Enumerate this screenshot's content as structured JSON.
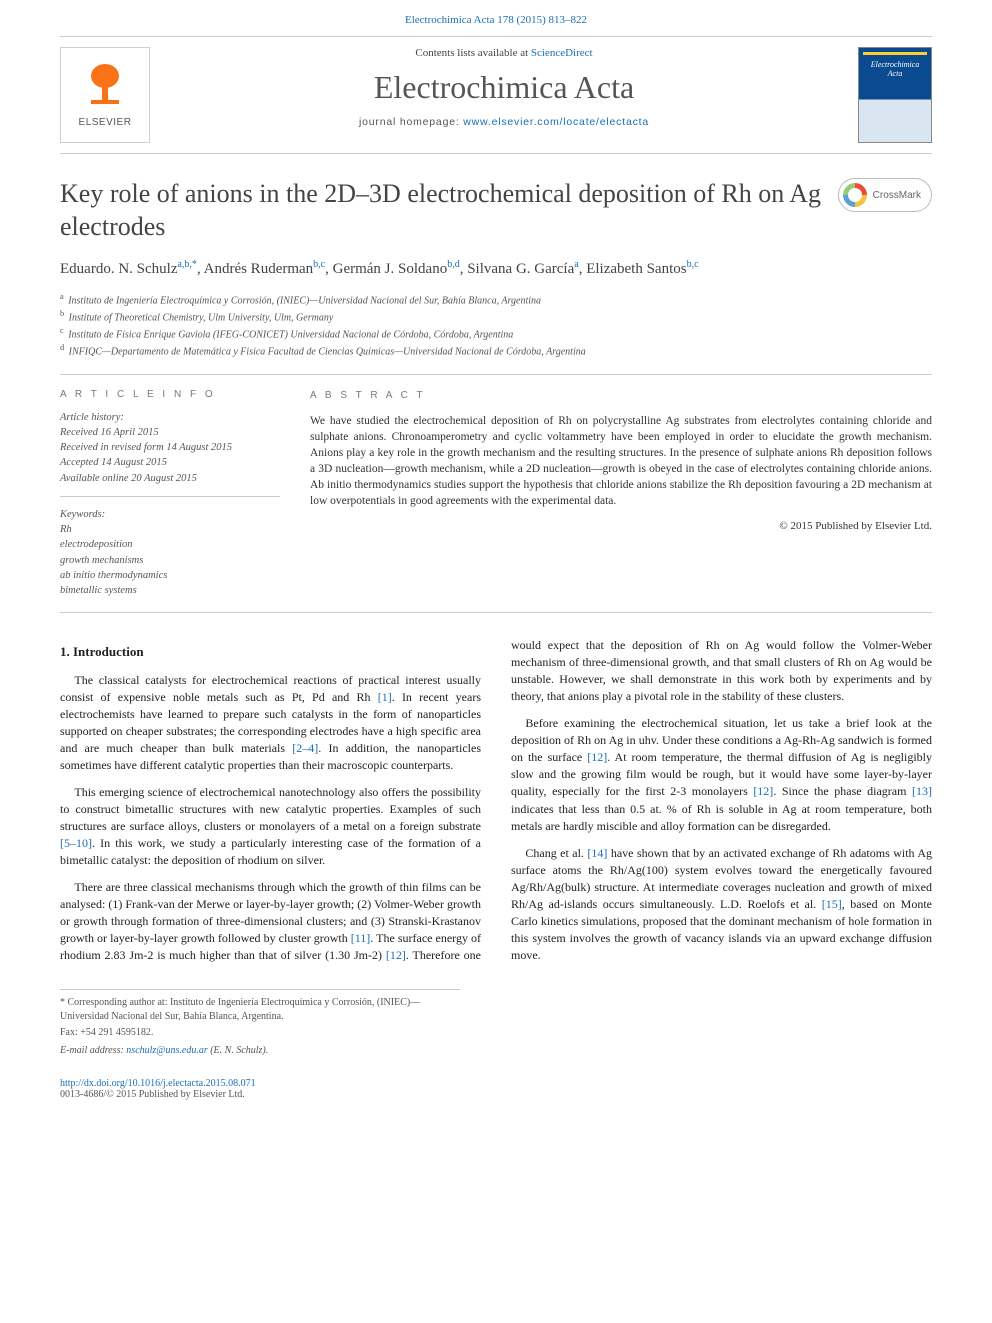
{
  "top_link": {
    "journal": "Electrochimica Acta",
    "cite": "178 (2015) 813–822"
  },
  "header": {
    "contents_prefix": "Contents lists available at ",
    "contents_link": "ScienceDirect",
    "journal_name": "Electrochimica Acta",
    "homepage_prefix": "journal homepage: ",
    "homepage_url": "www.elsevier.com/locate/electacta",
    "elsevier_brand": "ELSEVIER",
    "cover_title": "Electrochimica Acta"
  },
  "article": {
    "title": "Key role of anions in the 2D–3D electrochemical deposition of Rh on Ag electrodes",
    "crossmark_label": "CrossMark",
    "authors_html": "Eduardo. N. Schulz<sup>a,b,*</sup>, Andrés Ruderman<sup>b,c</sup>, Germán J. Soldano<sup>b,d</sup>, Silvana G. García<sup>a</sup>, Elizabeth Santos<sup>b,c</sup>",
    "affiliations": [
      {
        "key": "a",
        "text": "Instituto de Ingeniería Electroquímica y Corrosión, (INIEC)—Universidad Nacional del Sur, Bahía Blanca, Argentina"
      },
      {
        "key": "b",
        "text": "Institute of Theoretical Chemistry, Ulm University, Ulm, Germany"
      },
      {
        "key": "c",
        "text": "Instituto de Física Enrique Gaviola (IFEG-CONICET) Universidad Nacional de Córdoba, Córdoba, Argentina"
      },
      {
        "key": "d",
        "text": "INFIQC—Departamento de Matemática y Física Facultad de Ciencias Químicas—Universidad Nacional de Córdoba, Argentina"
      }
    ]
  },
  "info": {
    "heading": "A R T I C L E   I N F O",
    "history_label": "Article history:",
    "history": [
      "Received 16 April 2015",
      "Received in revised form 14 August 2015",
      "Accepted 14 August 2015",
      "Available online 20 August 2015"
    ],
    "keywords_label": "Keywords:",
    "keywords": [
      "Rh",
      "electrodeposition",
      "growth mechanisms",
      "ab initio thermodynamics",
      "bimetallic systems"
    ]
  },
  "abstract": {
    "heading": "A B S T R A C T",
    "text": "We have studied the electrochemical deposition of Rh on polycrystalline Ag substrates from electrolytes containing chloride and sulphate anions. Chronoamperometry and cyclic voltammetry have been employed in order to elucidate the growth mechanism. Anions play a key role in the growth mechanism and the resulting structures. In the presence of sulphate anions Rh deposition follows a 3D nucleation—growth mechanism, while a 2D nucleation—growth is obeyed in the case of electrolytes containing chloride anions. Ab initio thermodynamics studies support the hypothesis that chloride anions stabilize the Rh deposition favouring a 2D mechanism at low overpotentials in good agreements with the experimental data.",
    "copyright": "© 2015 Published by Elsevier Ltd."
  },
  "body": {
    "section_heading": "1. Introduction",
    "paragraphs": [
      "The classical catalysts for electrochemical reactions of practical interest usually consist of expensive noble metals such as Pt, Pd and Rh [1]. In recent years electrochemists have learned to prepare such catalysts in the form of nanoparticles supported on cheaper substrates; the corresponding electrodes have a high specific area and are much cheaper than bulk materials [2–4]. In addition, the nanoparticles sometimes have different catalytic properties than their macroscopic counterparts.",
      "This emerging science of electrochemical nanotechnology also offers the possibility to construct bimetallic structures with new catalytic properties. Examples of such structures are surface alloys, clusters or monolayers of a metal on a foreign substrate [5–10]. In this work, we study a particularly interesting case of the formation of a bimetallic catalyst: the deposition of rhodium on silver.",
      "There are three classical mechanisms through which the growth of thin films can be analysed: (1) Frank-van der Merwe or layer-by-layer growth; (2) Volmer-Weber growth or growth through formation of three-dimensional clusters; and (3) Stranski-Krastanov growth or layer-by-layer growth followed by cluster growth [11]. The surface energy of rhodium 2.83 Jm-2 is much higher than that of silver (1.30 Jm-2) [12]. Therefore one would expect that the deposition of Rh on Ag would follow the Volmer-Weber mechanism of three-dimensional growth, and that small clusters of Rh on Ag would be unstable. However, we shall demonstrate in this work both by experiments and by theory, that anions play a pivotal role in the stability of these clusters.",
      "Before examining the electrochemical situation, let us take a brief look at the deposition of Rh on Ag in uhv. Under these conditions a Ag-Rh-Ag sandwich is formed on the surface [12]. At room temperature, the thermal diffusion of Ag is negligibly slow and the growing film would be rough, but it would have some layer-by-layer quality, especially for the first 2-3 monolayers [12]. Since the phase diagram [13] indicates that less than 0.5 at. % of Rh is soluble in Ag at room temperature, both metals are hardly miscible and alloy formation can be disregarded.",
      "Chang et al. [14] have shown that by an activated exchange of Rh adatoms with Ag surface atoms the Rh/Ag(100) system evolves toward the energetically favoured Ag/Rh/Ag(bulk) structure. At intermediate coverages nucleation and growth of mixed Rh/Ag ad-islands occurs simultaneously. L.D. Roelofs et al. [15], based on Monte Carlo kinetics simulations, proposed that the dominant mechanism of hole formation in this system involves the growth of vacancy islands via an upward exchange diffusion move."
    ],
    "ref_indices": {
      "p0": [
        "[1]",
        "[2–4]"
      ],
      "p1": [
        "[5–10]"
      ],
      "p2": [
        "[11]",
        "[12]"
      ],
      "p3": [
        "[12]",
        "[12]",
        "[13]"
      ],
      "p4": [
        "[14]",
        "[15]"
      ]
    }
  },
  "footnote": {
    "corresponding": "* Corresponding author at: Instituto de Ingeniería Electroquímica y Corrosión, (INIEC)—Universidad Nacional del Sur, Bahía Blanca, Argentina.",
    "fax": "Fax: +54 291 4595182.",
    "email_label": "E-mail address:",
    "email": "nschulz@uns.edu.ar",
    "email_name": "(E. N. Schulz)."
  },
  "bottom": {
    "doi": "http://dx.doi.org/10.1016/j.electacta.2015.08.071",
    "issn_line": "0013-4686/© 2015 Published by Elsevier Ltd."
  },
  "colors": {
    "link": "#1a6fb5",
    "text": "#333333",
    "rule": "#cccccc",
    "elsevier_orange": "#f97316",
    "cover_blue": "#0a4a8f"
  }
}
